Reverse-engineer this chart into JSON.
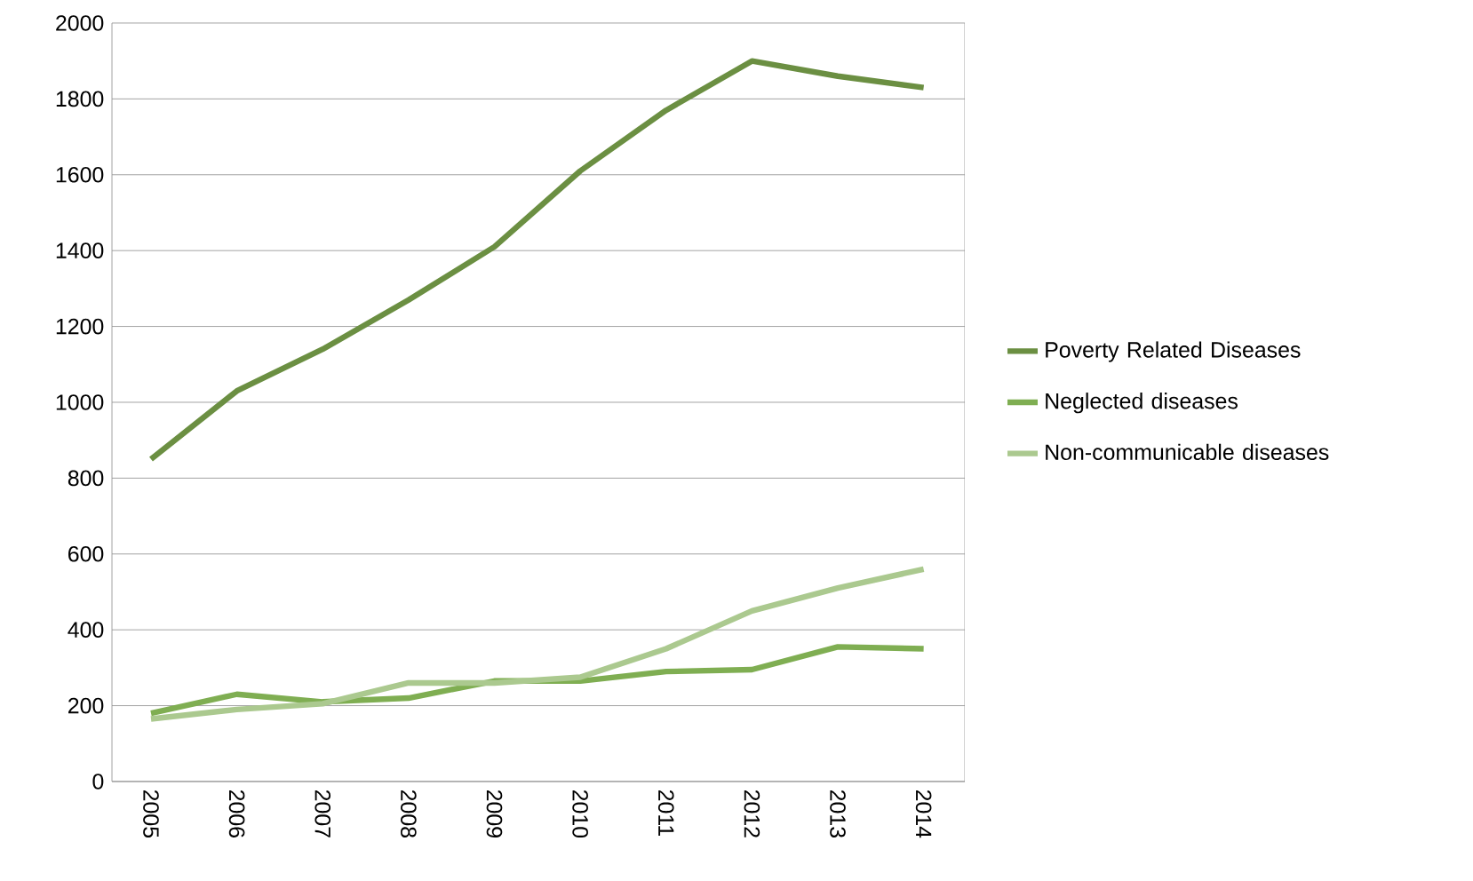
{
  "chart_data": {
    "type": "line",
    "categories": [
      "2005",
      "2006",
      "2007",
      "2008",
      "2009",
      "2010",
      "2011",
      "2012",
      "2013",
      "2014"
    ],
    "series": [
      {
        "name": "Poverty Related Diseases",
        "color": "#6b8f42",
        "values": [
          850,
          1030,
          1140,
          1270,
          1410,
          1610,
          1770,
          1900,
          1860,
          1830
        ]
      },
      {
        "name": "Neglected diseases",
        "color": "#7fae52",
        "values": [
          180,
          230,
          210,
          220,
          265,
          265,
          290,
          295,
          355,
          350
        ]
      },
      {
        "name": "Non-communicable diseases",
        "color": "#abc98f",
        "values": [
          165,
          190,
          205,
          260,
          260,
          275,
          350,
          450,
          510,
          560
        ]
      }
    ],
    "ylim": [
      0,
      2000
    ],
    "yticks": [
      0,
      200,
      400,
      600,
      800,
      1000,
      1200,
      1400,
      1600,
      1800,
      2000
    ],
    "grid": "y",
    "legend": "right",
    "marker": "none",
    "line_style": "solid"
  }
}
